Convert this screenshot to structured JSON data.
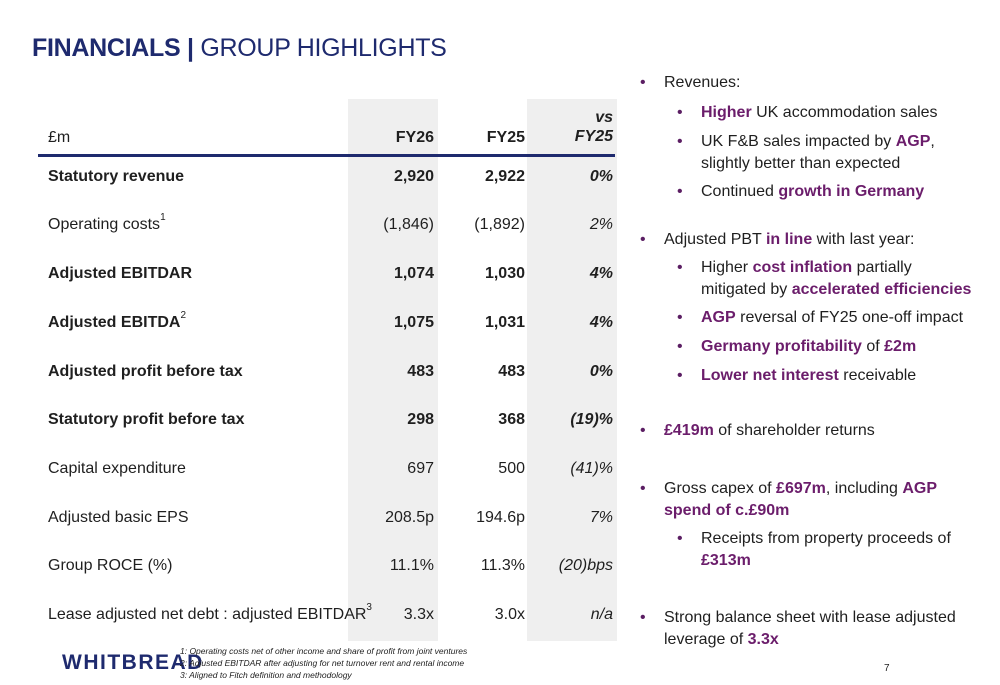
{
  "title": {
    "bold": "FINANCIALS |",
    "rest": "GROUP HIGHLIGHTS"
  },
  "table": {
    "headers": {
      "label": "£m",
      "fy26": "FY26",
      "fy25": "FY25",
      "vs_line1": "vs",
      "vs_line2": "FY25"
    },
    "rows": [
      {
        "label": "Statutory revenue",
        "sup": "",
        "fy26": "2,920",
        "fy25": "2,922",
        "vs": "0%"
      },
      {
        "label": "Operating costs",
        "sup": "1",
        "fy26": "(1,846)",
        "fy25": "(1,892)",
        "vs": "2%"
      },
      {
        "label": "Adjusted EBITDAR",
        "sup": "",
        "fy26": "1,074",
        "fy25": "1,030",
        "vs": "4%"
      },
      {
        "label": "Adjusted EBITDA",
        "sup": "2",
        "fy26": "1,075",
        "fy25": "1,031",
        "vs": "4%"
      },
      {
        "label": "Adjusted profit before tax",
        "sup": "",
        "fy26": "483",
        "fy25": "483",
        "vs": "0%"
      },
      {
        "label": "Statutory profit before tax",
        "sup": "",
        "fy26": "298",
        "fy25": "368",
        "vs": "(19)%"
      },
      {
        "label": "Capital expenditure",
        "sup": "",
        "fy26": "697",
        "fy25": "500",
        "vs": "(41)%"
      },
      {
        "label": "Adjusted basic EPS",
        "sup": "",
        "fy26": "208.5p",
        "fy25": "194.6p",
        "vs": "7%"
      },
      {
        "label": "Group ROCE (%)",
        "sup": "",
        "fy26": "11.1%",
        "fy25": "11.3%",
        "vs": "(20)bps"
      },
      {
        "label": "Lease adjusted net debt : adjusted EBITDAR",
        "sup": "3",
        "fy26": "3.3x",
        "fy25": "3.0x",
        "vs": "n/a"
      }
    ]
  },
  "bullets": {
    "b1": {
      "t1": "Revenues:"
    },
    "b1a": {
      "h1": "Higher",
      "t1": " UK accommodation sales"
    },
    "b1b": {
      "t1": "UK F&B sales impacted by ",
      "h1": "AGP",
      "t2": ", slightly better than expected"
    },
    "b1c": {
      "t1": "Continued ",
      "h1": "growth in Germany"
    },
    "b2": {
      "t1": "Adjusted PBT ",
      "h1": "in line",
      "t2": " with last year:"
    },
    "b2a": {
      "t1": "Higher ",
      "h1": "cost inflation",
      "t2": " partially mitigated by ",
      "h2": "accelerated efficiencies"
    },
    "b2b": {
      "h1": "AGP",
      "t1": " reversal of FY25 one-off impact"
    },
    "b2c": {
      "h1": "Germany profitability",
      "t1": " of ",
      "h2": "£2m"
    },
    "b2d": {
      "h1": "Lower net interest",
      "t1": " receivable"
    },
    "b3": {
      "h1": "£419m",
      "t1": " of shareholder returns"
    },
    "b4": {
      "t1": "Gross capex of ",
      "h1": "£697m",
      "t2": ", including ",
      "h2": "AGP spend of c.£90m"
    },
    "b4a": {
      "t1": "Receipts from property proceeds of ",
      "h1": "£313m"
    },
    "b5": {
      "t1": "Strong balance sheet with lease adjusted leverage of ",
      "h1": "3.3x"
    }
  },
  "footer": {
    "logo": "WHITBREAD",
    "notes": [
      "1: Operating costs net of other income and share of profit from joint ventures",
      "2: Adjusted EBITDAR after adjusting for net turnover rent and rental income",
      "3: Aligned to Fitch definition and methodology"
    ],
    "page_number": "7"
  },
  "colors": {
    "navy": "#1e2a6e",
    "purple": "#6b1d6b",
    "shade": "#efefef"
  }
}
